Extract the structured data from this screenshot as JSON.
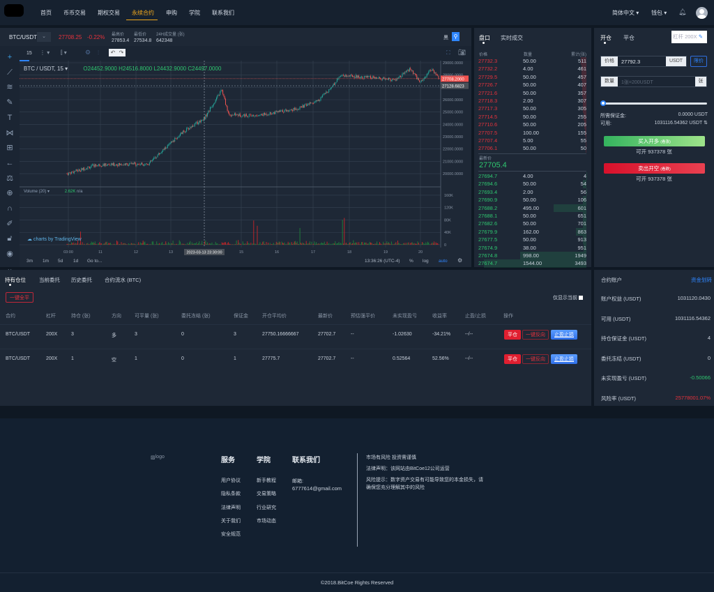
{
  "nav": {
    "items": [
      "首页",
      "币币交易",
      "期权交易",
      "永续合约",
      "申购",
      "学院",
      "联系我们"
    ],
    "active": 3,
    "language": "简体中文",
    "wallet": "钱包"
  },
  "ticker": {
    "symbol": "BTC/USDT",
    "price": "27708.25",
    "change": "-0.22%",
    "high_label": "最高价",
    "high": "27853.4",
    "low_label": "最低价",
    "low": "27534.8",
    "vol_label": "24H成交量 (张)",
    "vol": "642348",
    "theme_label": "黑"
  },
  "chart": {
    "interval": "15",
    "legend": {
      "symbol": "BTC / USDT, 15",
      "o": "O24452.9000",
      "h": "H24516.8000",
      "l": "L24432.9000",
      "c": "C24497.0000"
    },
    "price_ticks": [
      "29000.0000",
      "28000.0000",
      "26000.0000",
      "25000.0000",
      "24000.0000",
      "23000.0000",
      "22000.0000",
      "21000.0000",
      "20000.0000"
    ],
    "last_price_tag": "27708.2000",
    "crosshair_price_tag": "27128.6823",
    "volume_legend": "Volume (20)",
    "volume_value": "2.62K",
    "volume_na": "n/a",
    "volume_ticks": [
      "160K",
      "120K",
      "80K",
      "40K",
      "0"
    ],
    "time_ticks": [
      "03:00",
      "11",
      "12",
      "13",
      "15",
      "16",
      "17",
      "18",
      "19",
      "20"
    ],
    "crosshair_time": "2023-03-13 23:30:00",
    "watermark": "charts by TradingView",
    "ranges": [
      "3m",
      "1m",
      "5d",
      "1d",
      "Go to..."
    ],
    "clock": "13:36:26 (UTC-4)",
    "pct": "%",
    "log": "log",
    "auto": "auto",
    "colors": {
      "up": "#26a69a",
      "down": "#ef5350"
    }
  },
  "orderbook": {
    "tabs": [
      "盘口",
      "实时成交"
    ],
    "headers": [
      "价格",
      "数量",
      "累计(张)"
    ],
    "asks": [
      [
        "27732.3",
        "50.00",
        "511"
      ],
      [
        "27732.2",
        "4.00",
        "461"
      ],
      [
        "27729.5",
        "50.00",
        "457"
      ],
      [
        "27726.7",
        "50.00",
        "407"
      ],
      [
        "27721.6",
        "50.00",
        "357"
      ],
      [
        "27718.3",
        "2.00",
        "307"
      ],
      [
        "27717.3",
        "50.00",
        "305"
      ],
      [
        "27714.5",
        "50.00",
        "255"
      ],
      [
        "27710.6",
        "50.00",
        "205"
      ],
      [
        "27707.5",
        "100.00",
        "155"
      ],
      [
        "27707.4",
        "5.00",
        "55"
      ],
      [
        "27706.1",
        "50.00",
        "50"
      ]
    ],
    "last_label": "最新价",
    "last": "27705.4",
    "bids": [
      [
        "27694.7",
        "4.00",
        "4"
      ],
      [
        "27694.6",
        "50.00",
        "54"
      ],
      [
        "27693.4",
        "2.00",
        "56"
      ],
      [
        "27690.9",
        "50.00",
        "106"
      ],
      [
        "27688.2",
        "495.00",
        "601"
      ],
      [
        "27688.1",
        "50.00",
        "651"
      ],
      [
        "27682.6",
        "50.00",
        "701"
      ],
      [
        "27679.9",
        "162.00",
        "863"
      ],
      [
        "27677.5",
        "50.00",
        "913"
      ],
      [
        "27674.9",
        "38.00",
        "951"
      ],
      [
        "27674.8",
        "998.00",
        "1949"
      ],
      [
        "27674.7",
        "1544.00",
        "3493"
      ]
    ]
  },
  "trade": {
    "tabs": [
      "开仓",
      "平仓"
    ],
    "leverage": "杠杆 200X",
    "price_label": "价格",
    "price": "27792.3",
    "price_unit": "USDT",
    "limit": "限价",
    "qty_label": "数量",
    "qty_placeholder": "1张=200USDT",
    "qty_unit": "张",
    "slider": 0,
    "margin_label": "所需保证金:",
    "margin": "0.0000 USDT",
    "avail_label": "可用:",
    "avail": "1031116.54362 USDT",
    "buy": "买入开多",
    "buy_sub": "(看涨)",
    "buy_avail": "可开 937378 张",
    "sell": "卖出开空",
    "sell_sub": "(看跌)",
    "sell_avail": "可开 937378 张"
  },
  "positions": {
    "tabs": [
      "持有仓位",
      "当前委托",
      "历史委托",
      "合约流水 (BTC)"
    ],
    "close_all": "一键全平",
    "only_current": "仅显示当前",
    "headers": [
      "合约",
      "杠杆",
      "持仓 (张)",
      "方向",
      "可平量 (张)",
      "委托冻结 (张)",
      "保证金",
      "开仓平均价",
      "最新价",
      "预估强平价",
      "未实现盈亏",
      "收益率",
      "止盈/止损",
      "操作"
    ],
    "rows": [
      [
        "BTC/USDT",
        "200X",
        "3",
        "多",
        "3",
        "0",
        "3",
        "27750.16666667",
        "27702.7",
        "--",
        "-1.02630",
        "-34.21%",
        "--/--"
      ],
      [
        "BTC/USDT",
        "200X",
        "1",
        "空",
        "1",
        "0",
        "1",
        "27775.7",
        "27702.7",
        "--",
        "0.52564",
        "52.56%",
        "--/--"
      ]
    ],
    "actions": [
      "平仓",
      "一键反向",
      "止盈止损"
    ]
  },
  "account": {
    "title": "合约账户",
    "transfer": "资金划转",
    "rows": [
      [
        "账户权益 (USDT)",
        "1031120.0430"
      ],
      [
        "可用 (USDT)",
        "1031116.54362"
      ],
      [
        "持仓保证金 (USDT)",
        "4"
      ],
      [
        "委托冻结 (USDT)",
        "0"
      ],
      [
        "未实现盈亏 (USDT)",
        "-0.50066"
      ],
      [
        "风险率 (USDT)",
        "25778001.07%"
      ]
    ]
  },
  "footer": {
    "logo_alt": "logo",
    "cols": [
      {
        "title": "服务",
        "items": [
          "用户协议",
          "隐私条款",
          "法律声明",
          "关于我们",
          "安全规范"
        ]
      },
      {
        "title": "学院",
        "items": [
          "新手教程",
          "交易策略",
          "行业研究",
          "市场动态"
        ]
      }
    ],
    "contact_title": "联系我们",
    "email_label": "邮箱:",
    "email": "6777614@gmail.com",
    "notes": [
      "市场有风险 投资需谨慎",
      "法律声明：该网站由BitCoe12公司运营",
      "风险提示：数字资产交易有可能导致您的本金损失，请",
      "确保您充分理解其中的风险"
    ],
    "copyright": "©2018.BitCoe Rights Reserved"
  }
}
